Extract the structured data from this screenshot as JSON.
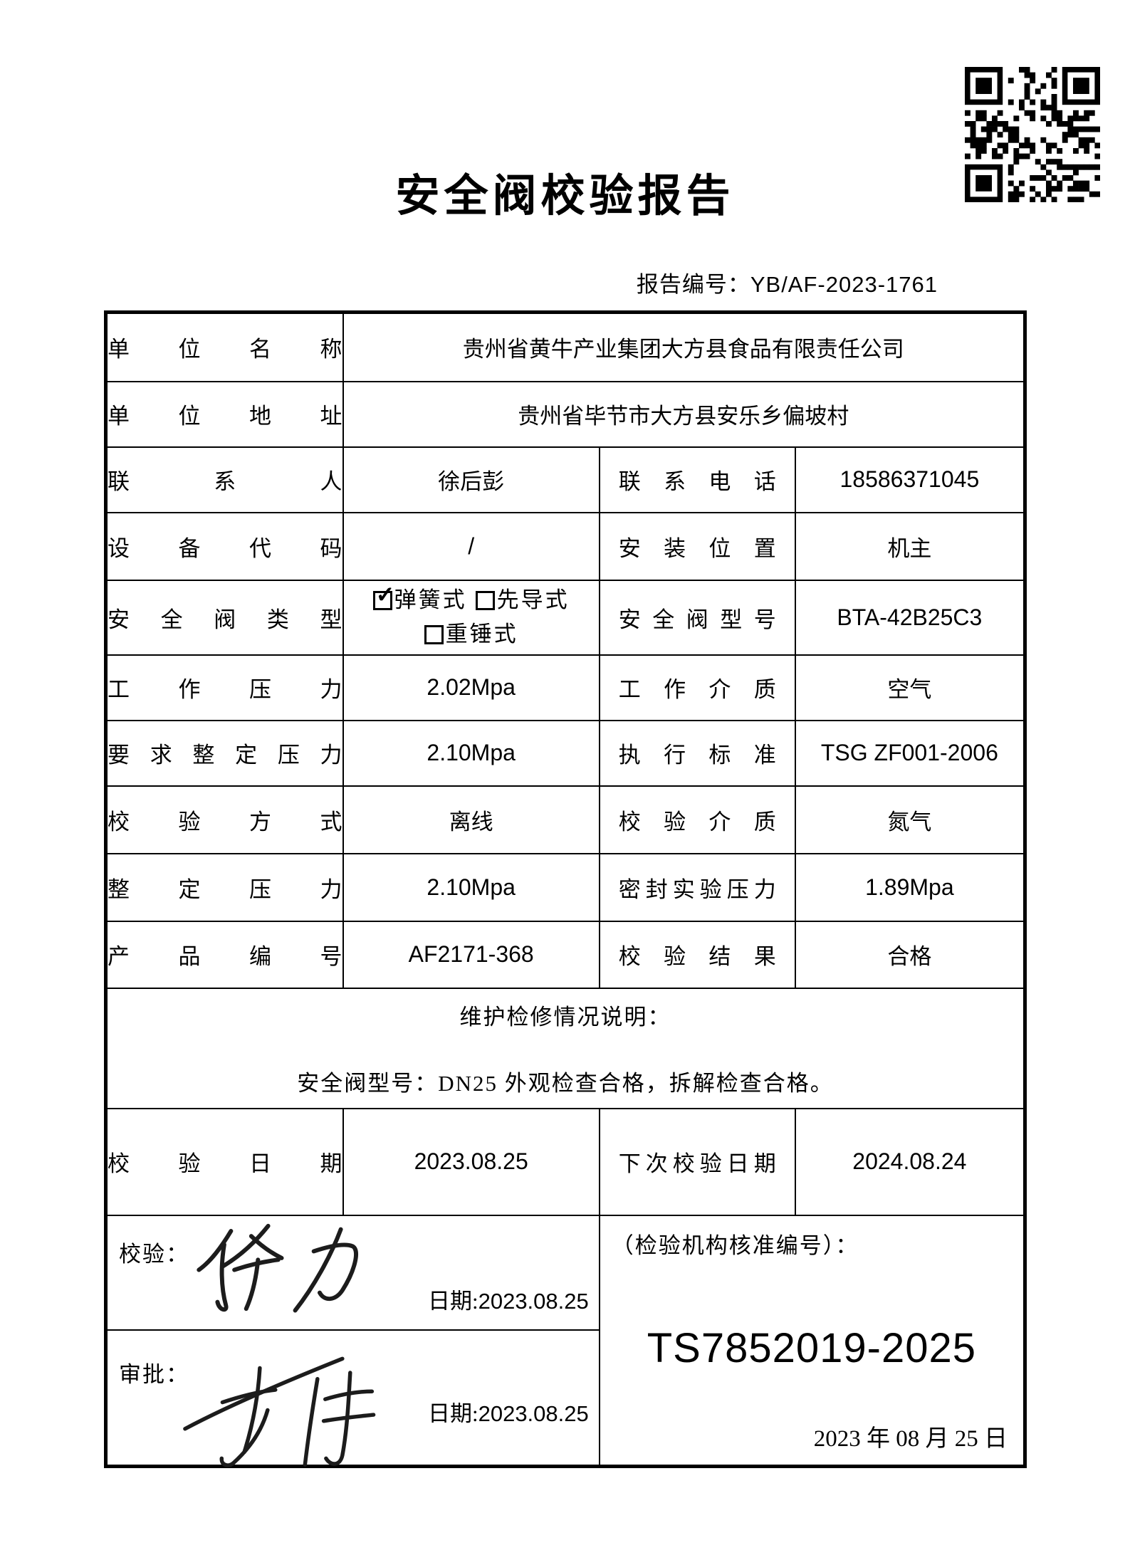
{
  "page": {
    "title": "安全阀校验报告",
    "report_no_label": "报告编号：",
    "report_no": "YB/AF-2023-1761"
  },
  "colors": {
    "ink": "#000000",
    "paper": "#ffffff"
  },
  "icons": {
    "qr": "qr-code-icon",
    "check_glyph": "✓"
  },
  "fields": {
    "unit_name": {
      "label": "单位名称",
      "value": "贵州省黄牛产业集团大方县食品有限责任公司"
    },
    "unit_address": {
      "label": "单位地址",
      "value": "贵州省毕节市大方县安乐乡偏坡村"
    },
    "contact": {
      "label": "联系人",
      "value": "徐后彭"
    },
    "phone": {
      "label": "联系电话",
      "value": "18586371045"
    },
    "device_code": {
      "label": "设备代码",
      "value": "/"
    },
    "install_location": {
      "label": "安装位置",
      "value": "机主"
    },
    "valve_type": {
      "label": "安全阀类型",
      "options": [
        {
          "label": "弹簧式",
          "checked": true
        },
        {
          "label": "先导式",
          "checked": false
        },
        {
          "label": "重锤式",
          "checked": false
        }
      ]
    },
    "valve_model": {
      "label": "安全阀型号",
      "value": "BTA-42B25C3"
    },
    "working_pressure": {
      "label": "工作压力",
      "value": "2.02Mpa"
    },
    "working_medium": {
      "label": "工作介质",
      "value": "空气"
    },
    "required_set_pressure": {
      "label": "要求整定压力",
      "value": "2.10Mpa"
    },
    "standard": {
      "label": "执行标准",
      "value": "TSG ZF001-2006"
    },
    "calibration_method": {
      "label": "校验方式",
      "value": "离线"
    },
    "calibration_medium": {
      "label": "校验介质",
      "value": "氮气"
    },
    "set_pressure": {
      "label": "整定压力",
      "value": "2.10Mpa"
    },
    "seal_test_pressure": {
      "label": "密封实验压力",
      "value": "1.89Mpa"
    },
    "product_no": {
      "label": "产品编号",
      "value": "AF2171-368"
    },
    "calibration_result": {
      "label": "校验结果",
      "value": "合格"
    },
    "maintenance": {
      "title": "维护检修情况说明：",
      "content": "安全阀型号：DN25 外观检查合格，拆解检查合格。"
    },
    "calibration_date": {
      "label": "校验日期",
      "value": "2023.08.25"
    },
    "next_calibration_date": {
      "label": "下次校验日期",
      "value": "2024.08.24"
    },
    "verifier": {
      "label": "校验：",
      "signature": "徐力",
      "date_label": "日期:",
      "date": "2023.08.25"
    },
    "approver": {
      "label": "审批：",
      "signature": "李伟",
      "date_label": "日期:",
      "date": "2023.08.25"
    },
    "cert": {
      "label": "（检验机构核准编号）：",
      "number": "TS7852019-2025",
      "date": "2023 年 08 月 25 日"
    }
  }
}
